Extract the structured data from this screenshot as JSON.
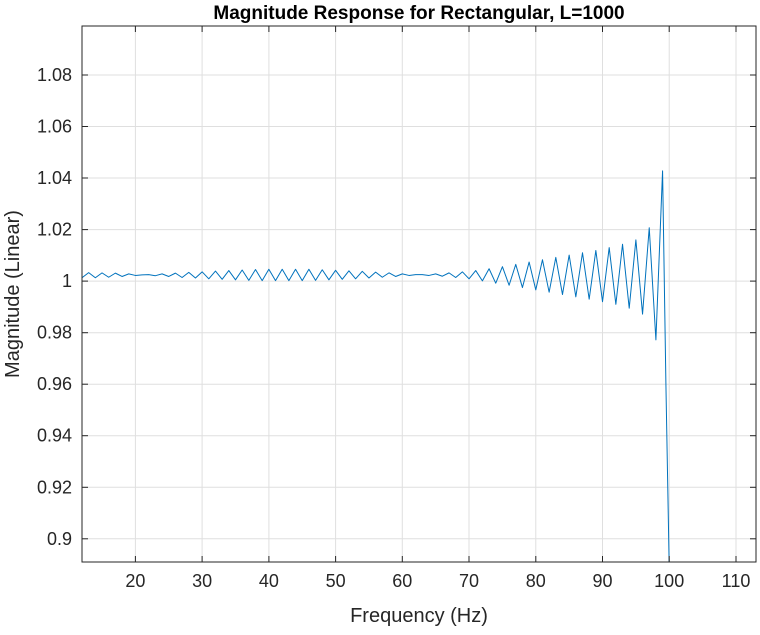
{
  "chart_data": {
    "type": "line",
    "title": "Magnitude Response for Rectangular, L=1000",
    "xlabel": "Frequency (Hz)",
    "ylabel": "Magnitude (Linear)",
    "xlim": [
      12,
      113
    ],
    "ylim": [
      0.891,
      1.099
    ],
    "grid": true,
    "x_ticks": [
      20,
      30,
      40,
      50,
      60,
      70,
      80,
      90,
      100,
      110
    ],
    "x_tick_labels": [
      "20",
      "30",
      "40",
      "50",
      "60",
      "70",
      "80",
      "90",
      "100",
      "110"
    ],
    "y_ticks": [
      0.9,
      0.92,
      0.94,
      0.96,
      0.98,
      1.0,
      1.02,
      1.04,
      1.06,
      1.08
    ],
    "y_tick_labels": [
      "0.9",
      "0.92",
      "0.94",
      "0.96",
      "0.98",
      "1",
      "1.02",
      "1.04",
      "1.06",
      "1.08"
    ],
    "series": [
      {
        "color": "#0072BD",
        "x": [
          12,
          13,
          14,
          15,
          16,
          17,
          18,
          19,
          20,
          21,
          22,
          23,
          24,
          25,
          26,
          27,
          28,
          29,
          30,
          31,
          32,
          33,
          34,
          35,
          36,
          37,
          38,
          39,
          40,
          41,
          42,
          43,
          44,
          45,
          46,
          47,
          48,
          49,
          50,
          51,
          52,
          53,
          54,
          55,
          56,
          57,
          58,
          59,
          60,
          61,
          62,
          63,
          64,
          65,
          66,
          67,
          68,
          69,
          70,
          71,
          72,
          73,
          74,
          75,
          76,
          77,
          78,
          79,
          80,
          81,
          82,
          83,
          84,
          85,
          86,
          87,
          88,
          89,
          90,
          91,
          92,
          93,
          94,
          95,
          96,
          97,
          98,
          99,
          99.5,
          100
        ],
        "y": [
          1.0013,
          1.0033,
          1.0013,
          1.0032,
          1.0015,
          1.0031,
          1.0018,
          1.0028,
          1.0022,
          1.0024,
          1.0025,
          1.0021,
          1.0028,
          1.0018,
          1.0031,
          1.0014,
          1.0034,
          1.0012,
          1.0036,
          1.0009,
          1.0039,
          1.0007,
          1.0041,
          1.0005,
          1.0043,
          1.0003,
          1.0045,
          1.0002,
          1.0046,
          1.0002,
          1.0046,
          1.0002,
          1.0046,
          1.0002,
          1.0046,
          1.0003,
          1.0044,
          1.0005,
          1.0042,
          1.0007,
          1.004,
          1.0009,
          1.0038,
          1.0012,
          1.0035,
          1.0015,
          1.0032,
          1.0018,
          1.0028,
          1.0022,
          1.0025,
          1.0025,
          1.0022,
          1.0028,
          1.0019,
          1.0032,
          1.0014,
          1.0036,
          1.0009,
          1.0041,
          1.0001,
          1.0048,
          0.9992,
          1.0056,
          0.9984,
          1.0065,
          0.9975,
          1.0074,
          0.9966,
          1.0083,
          0.9957,
          1.0092,
          0.9948,
          1.0101,
          0.9939,
          1.011,
          0.993,
          1.0119,
          0.992,
          1.013,
          0.991,
          1.0143,
          0.9895,
          1.016,
          0.9872,
          1.0207,
          0.9772,
          1.0428,
          0.96,
          0.888
        ]
      }
    ]
  }
}
